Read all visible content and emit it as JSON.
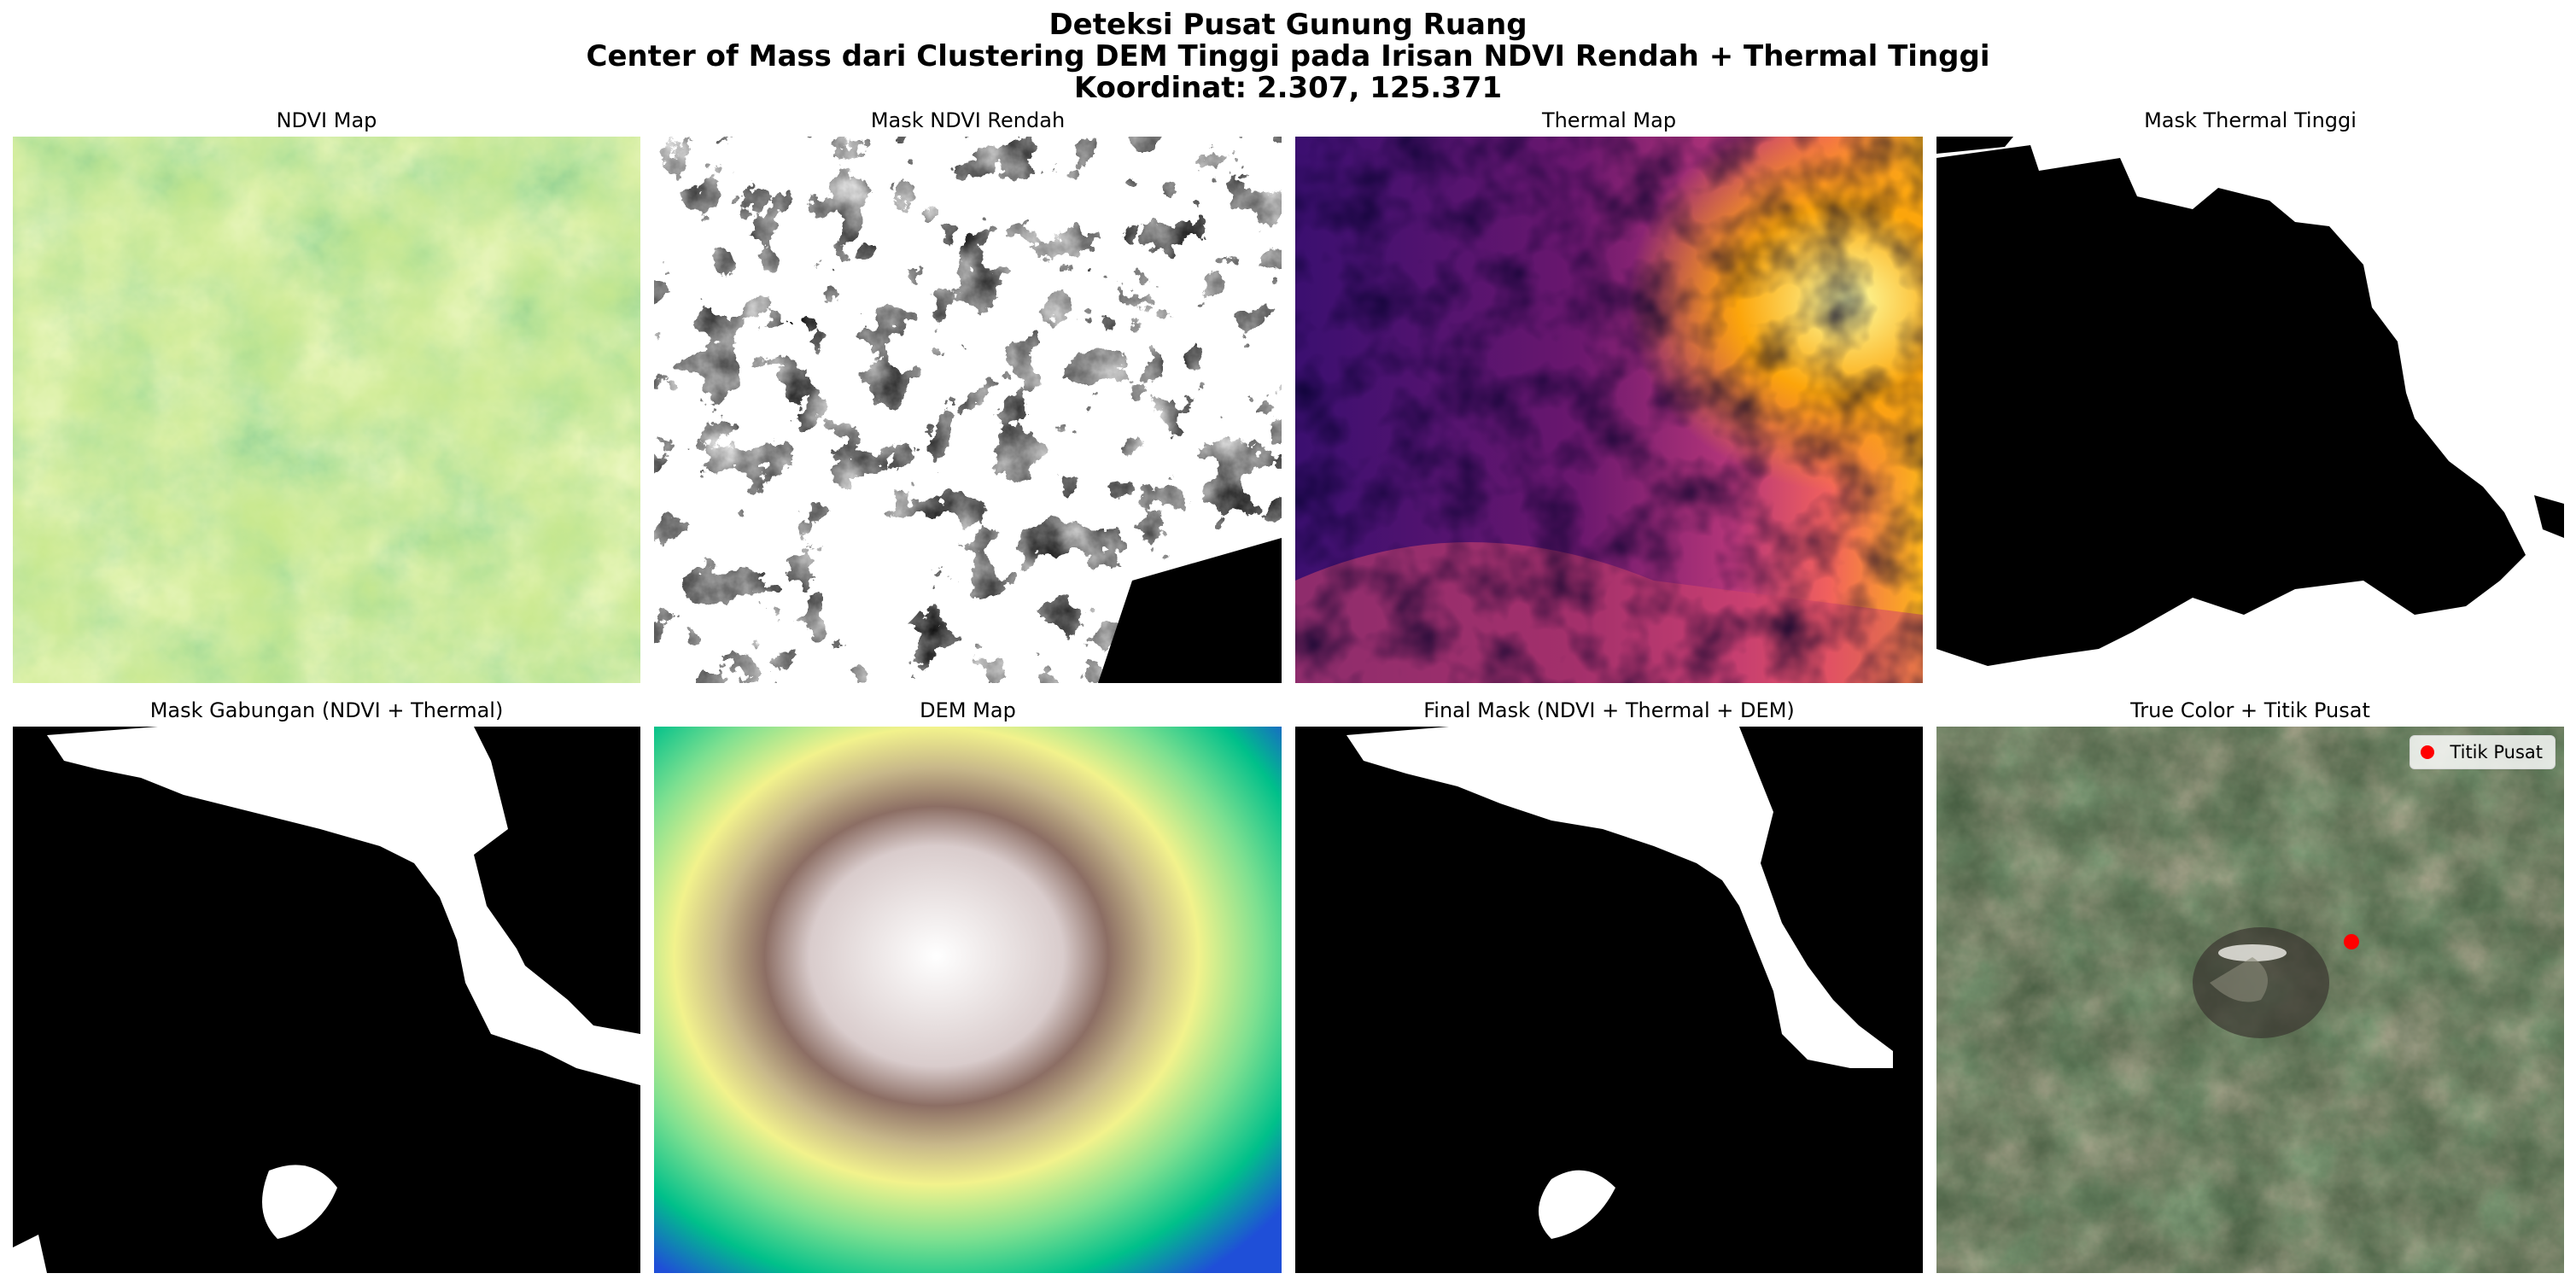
{
  "figure": {
    "title_line1": "Deteksi Pusat Gunung Ruang",
    "title_line2": "Center of Mass dari Clustering DEM Tinggi pada Irisan NDVI Rendah + Thermal Tinggi",
    "title_line3": "Koordinat: 2.307, 125.371"
  },
  "panels": [
    {
      "title": "NDVI Map",
      "kind": "ndvi",
      "colormap": [
        "#006837",
        "#66bd63",
        "#d9ef8b",
        "#ffffbf"
      ]
    },
    {
      "title": "Mask NDVI Rendah",
      "kind": "mask",
      "colormap": [
        "#000000",
        "#ffffff"
      ]
    },
    {
      "title": "Thermal Map",
      "kind": "thermal",
      "colormap": [
        "#000004",
        "#420a68",
        "#932667",
        "#dd513a",
        "#fca50a",
        "#fcffa4"
      ]
    },
    {
      "title": "Mask Thermal Tinggi",
      "kind": "mask",
      "colormap": [
        "#000000",
        "#ffffff"
      ]
    },
    {
      "title": "Mask Gabungan (NDVI + Thermal)",
      "kind": "mask",
      "colormap": [
        "#000000",
        "#ffffff"
      ]
    },
    {
      "title": "DEM Map",
      "kind": "dem",
      "colormap": [
        "#1f4fd8",
        "#00c08a",
        "#f2f28c",
        "#8c6e64",
        "#ffffff"
      ]
    },
    {
      "title": "Final Mask (NDVI + Thermal + DEM)",
      "kind": "mask",
      "colormap": [
        "#000000",
        "#ffffff"
      ]
    },
    {
      "title": "True Color + Titik Pusat",
      "kind": "truecolor",
      "legend_label": "Titik Pusat",
      "marker_color": "#ff0000"
    }
  ]
}
